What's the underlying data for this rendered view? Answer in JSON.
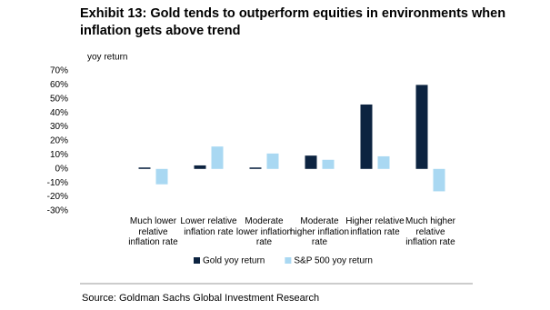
{
  "chart_data": {
    "type": "bar",
    "title": "Exhibit 13: Gold tends to outperform equities in environments when inflation gets above trend",
    "y_label": "yoy return",
    "categories": [
      "Much lower relative inflation rate",
      "Lower relative inflation rate",
      "Moderate lower inflation rate",
      "Moderate higher inflation rate",
      "Higher relative inflation rate",
      "Much higher relative inflation rate"
    ],
    "series": [
      {
        "name": "Gold yoy return",
        "color": "#0c2340",
        "values": [
          1,
          2.5,
          1,
          9.5,
          46,
          60
        ]
      },
      {
        "name": "S&P 500 yoy return",
        "color": "#a9d8f2",
        "values": [
          -11,
          16,
          11,
          6.5,
          9,
          -16
        ]
      }
    ],
    "ylim": [
      -30,
      70
    ],
    "yticks": [
      {
        "value": 70,
        "label": "70%"
      },
      {
        "value": 60,
        "label": "60%"
      },
      {
        "value": 50,
        "label": "50%"
      },
      {
        "value": 40,
        "label": "40%"
      },
      {
        "value": 30,
        "label": "30%"
      },
      {
        "value": 20,
        "label": "20%"
      },
      {
        "value": 10,
        "label": "10%"
      },
      {
        "value": 0,
        "label": "0%"
      },
      {
        "value": -10,
        "label": "-10%"
      },
      {
        "value": -20,
        "label": "-20%"
      },
      {
        "value": -30,
        "label": "-30%"
      }
    ],
    "grid": false,
    "legend": "bottom",
    "source": "Source: Goldman Sachs Global Investment Research"
  }
}
